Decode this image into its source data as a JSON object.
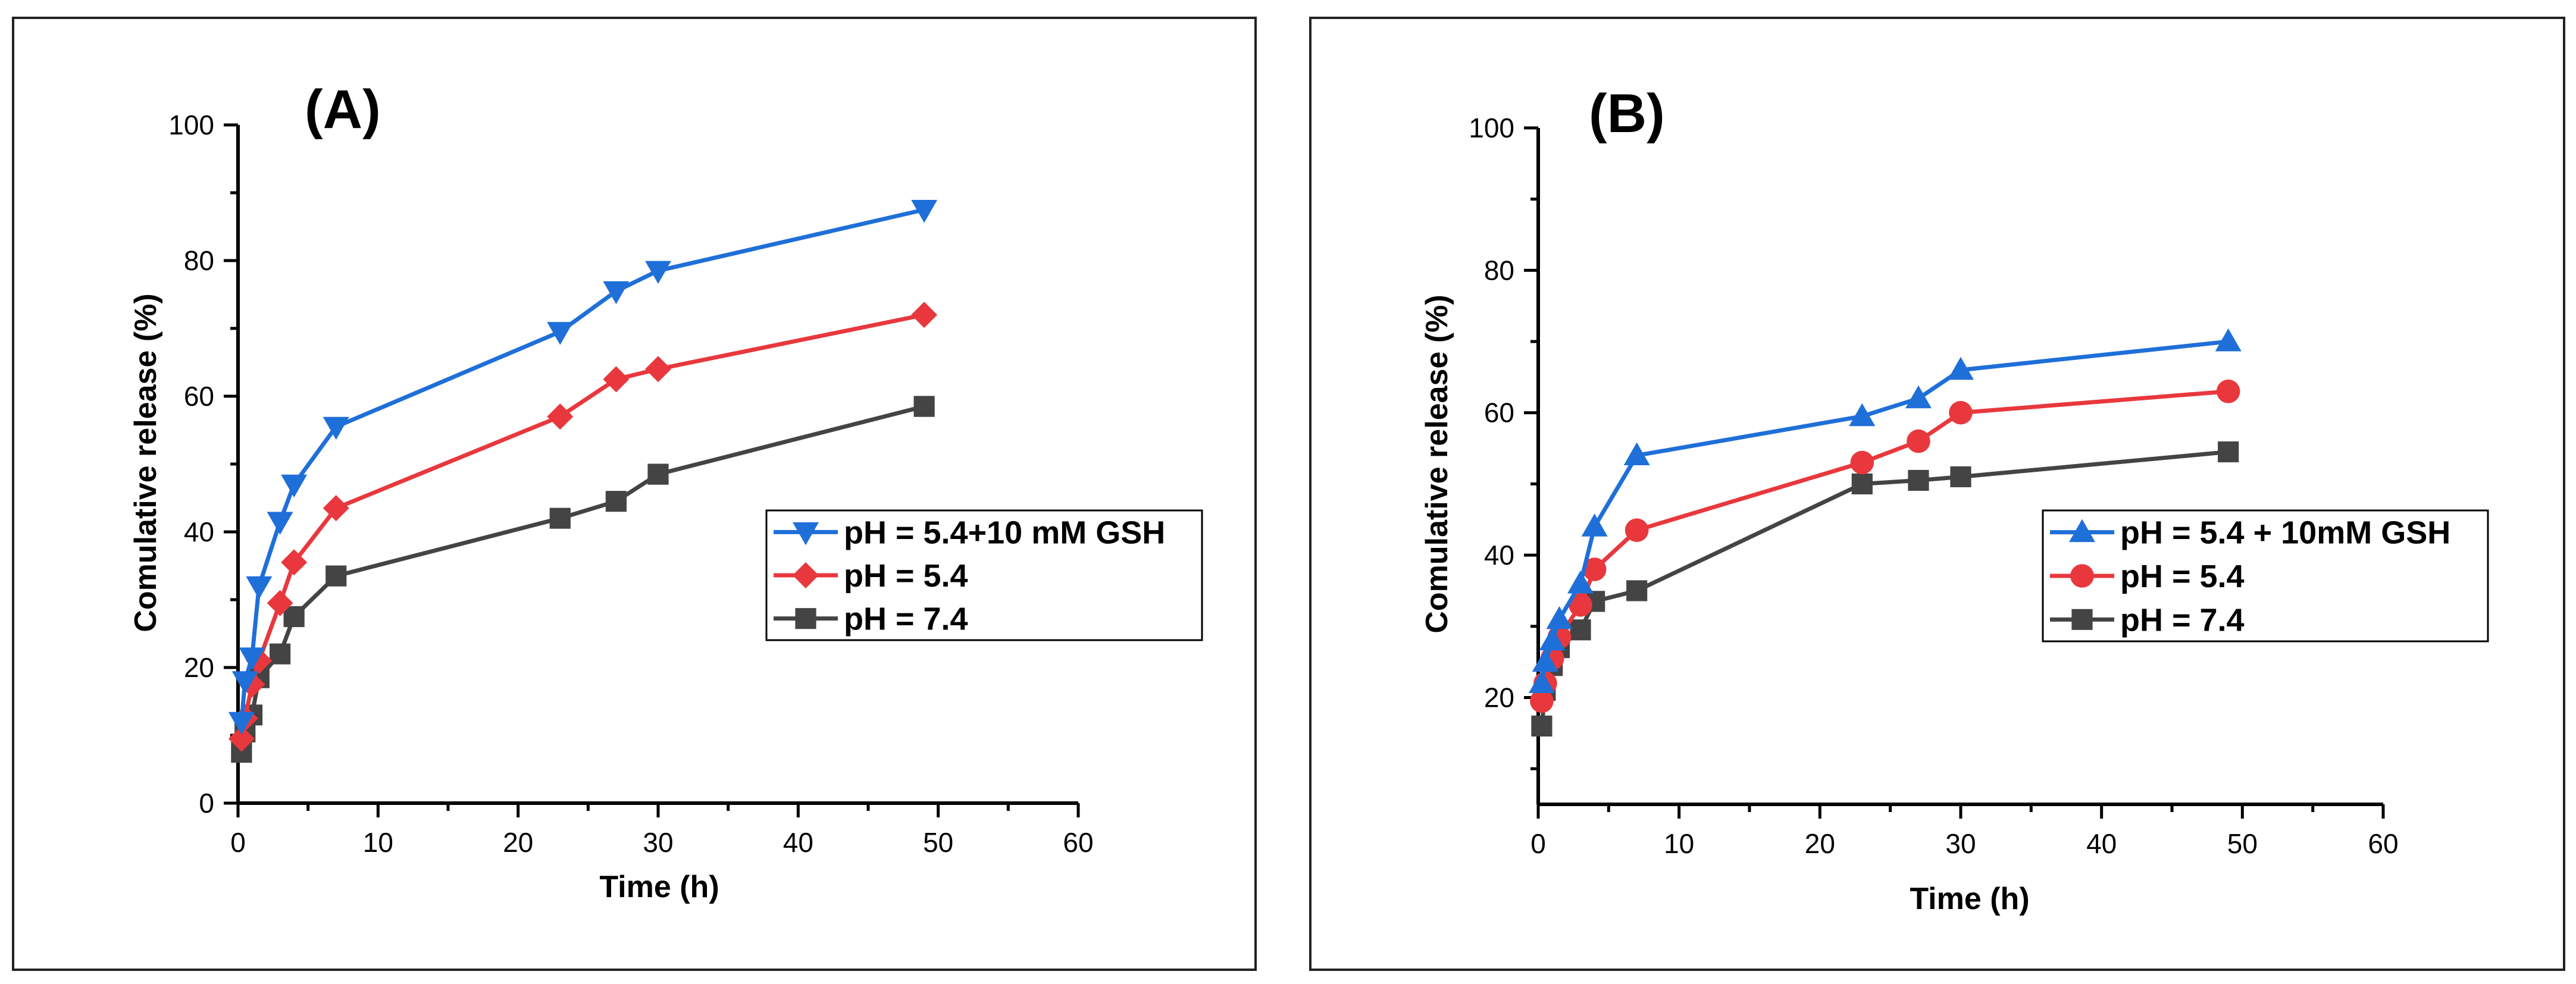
{
  "chart_data": [
    {
      "type": "line",
      "title": "(A)",
      "xlabel": "Time (h)",
      "ylabel": "Comulative release (%)",
      "xlim": [
        0,
        60
      ],
      "ylim": [
        0,
        100
      ],
      "xticks": [
        0,
        10,
        20,
        30,
        40,
        50,
        60
      ],
      "yticks": [
        0,
        20,
        40,
        60,
        80,
        100
      ],
      "grid": false,
      "legend_position": "center-right",
      "series": [
        {
          "name": "pH = 5.4+10 mM GSH",
          "color": "#1f6fd8",
          "marker": "triangle-down",
          "x": [
            0.25,
            0.5,
            1,
            1.5,
            3,
            4,
            7,
            23,
            27,
            30,
            49
          ],
          "y": [
            12,
            18,
            21.5,
            32,
            41.5,
            47,
            55.5,
            69.5,
            75.5,
            78.5,
            87.5
          ]
        },
        {
          "name": "pH = 5.4",
          "color": "#e8383d",
          "marker": "diamond",
          "x": [
            0.25,
            0.5,
            1,
            1.5,
            3,
            4,
            7,
            23,
            27,
            30,
            49
          ],
          "y": [
            9.5,
            12.5,
            17.5,
            21,
            29.5,
            35.5,
            43.5,
            57,
            62.5,
            64,
            72
          ]
        },
        {
          "name": "pH = 7.4",
          "color": "#444444",
          "marker": "square",
          "x": [
            0.25,
            0.5,
            1,
            1.5,
            3,
            4,
            7,
            23,
            27,
            30,
            49
          ],
          "y": [
            7.5,
            10.5,
            13,
            18.5,
            22,
            27.5,
            33.5,
            42,
            44.5,
            48.5,
            58.5
          ]
        }
      ]
    },
    {
      "type": "line",
      "title": "(B)",
      "xlabel": "Time (h)",
      "ylabel": "Comulative release (%)",
      "xlim": [
        0,
        60
      ],
      "ylim": [
        5,
        100
      ],
      "xticks": [
        0,
        10,
        20,
        30,
        40,
        50,
        60
      ],
      "yticks": [
        20,
        40,
        60,
        80,
        100
      ],
      "grid": false,
      "legend_position": "center-right",
      "series": [
        {
          "name": "pH = 5.4 + 10mM GSH",
          "color": "#1f6fd8",
          "marker": "triangle-up",
          "x": [
            0.25,
            0.5,
            1,
            1.5,
            3,
            4,
            7,
            23,
            27,
            30,
            49
          ],
          "y": [
            22,
            25,
            28,
            31,
            36,
            44,
            54,
            59.5,
            62,
            66,
            70
          ]
        },
        {
          "name": "pH = 5.4",
          "color": "#e8383d",
          "marker": "circle",
          "x": [
            0.25,
            0.5,
            1,
            1.5,
            3,
            4,
            7,
            23,
            27,
            30,
            49
          ],
          "y": [
            19.5,
            22,
            25.5,
            28.5,
            33,
            38,
            43.5,
            53,
            56,
            60,
            63
          ]
        },
        {
          "name": "pH = 7.4",
          "color": "#444444",
          "marker": "square",
          "x": [
            0.25,
            0.5,
            1,
            1.5,
            3,
            4,
            7,
            23,
            27,
            30,
            49
          ],
          "y": [
            16,
            21,
            24.5,
            27,
            29.5,
            33.5,
            35,
            50,
            50.5,
            51,
            54.5
          ]
        }
      ]
    }
  ]
}
